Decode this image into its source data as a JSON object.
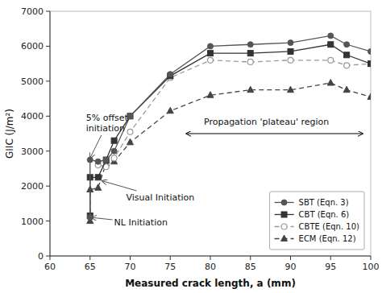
{
  "chart_data": {
    "type": "line",
    "xlabel": "Measured crack length, a (mm)",
    "ylabel": "GIIC (J/m²)",
    "xlim": [
      60,
      100
    ],
    "ylim": [
      0,
      7000
    ],
    "xticks": [
      60,
      65,
      70,
      75,
      80,
      85,
      90,
      95,
      100
    ],
    "yticks": [
      0,
      1000,
      2000,
      3000,
      4000,
      5000,
      6000,
      7000
    ],
    "legend": "lower right",
    "series": [
      {
        "name": "SBT (Eqn. 3)",
        "color": "#555555",
        "line_style": "solid",
        "marker": "circle",
        "x": [
          65,
          65,
          66,
          67,
          68,
          70,
          75,
          80,
          85,
          90,
          95,
          97,
          100
        ],
        "values": [
          1100,
          2750,
          2700,
          2750,
          3000,
          4000,
          5200,
          6000,
          6050,
          6100,
          6300,
          6050,
          5850
        ]
      },
      {
        "name": "CBT (Eqn. 6)",
        "color": "#333333",
        "line_style": "solid",
        "marker": "square",
        "x": [
          65,
          65,
          66,
          67,
          68,
          70,
          75,
          80,
          85,
          90,
          95,
          97,
          100
        ],
        "values": [
          1150,
          2250,
          2250,
          2750,
          3300,
          4000,
          5150,
          5800,
          5800,
          5850,
          6050,
          5750,
          5500
        ]
      },
      {
        "name": "CBTE (Eqn. 10)",
        "color": "#999999",
        "line_style": "dashed",
        "marker": "open-circle",
        "x": [
          66,
          67,
          68,
          70,
          75,
          80,
          85,
          90,
          95,
          97,
          100
        ],
        "values": [
          2600,
          2550,
          2800,
          3550,
          5100,
          5600,
          5550,
          5600,
          5600,
          5450,
          5500
        ]
      },
      {
        "name": "ECM (Eqn. 12)",
        "color": "#444444",
        "line_style": "dashed",
        "marker": "triangle",
        "x": [
          65,
          65,
          66,
          67,
          68,
          70,
          75,
          80,
          85,
          90,
          95,
          97,
          100
        ],
        "values": [
          1000,
          1900,
          1950,
          2650,
          2700,
          3250,
          4150,
          4600,
          4750,
          4750,
          4950,
          4750,
          4550
        ]
      }
    ],
    "annotations": [
      {
        "text": "5% offset\ninitiation",
        "x": 65,
        "y": 2800,
        "text_x": 64.5,
        "text_y": 4100
      },
      {
        "text": "Visual Initiation",
        "x": 66.5,
        "y": 2150,
        "text_x": 69.5,
        "text_y": 1820
      },
      {
        "text": "NL Initiation",
        "x": 65.2,
        "y": 1100,
        "text_x": 68.0,
        "text_y": 1100
      },
      {
        "text": "Propagation 'plateau' region",
        "x": 77,
        "x2": 99,
        "y": 3500,
        "text_x": 87,
        "text_y": 3680
      }
    ]
  }
}
